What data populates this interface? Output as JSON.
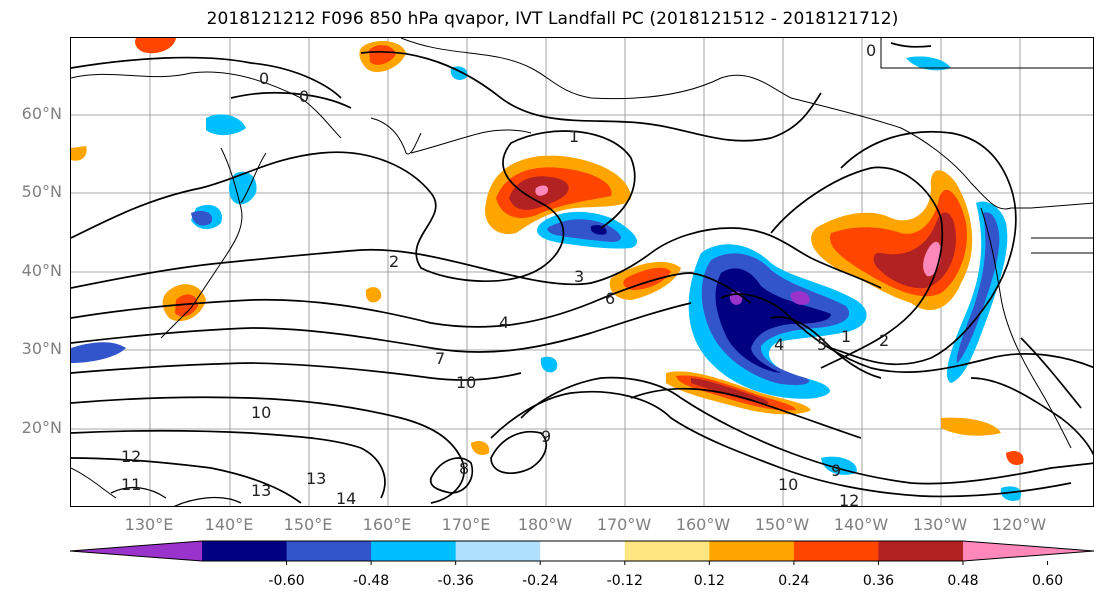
{
  "title": "2018121212 F096 850 hPa qvapor, IVT Landfall PC (2018121512 - 2018121712)",
  "lat_labels": [
    "60°N",
    "50°N",
    "40°N",
    "30°N",
    "20°N"
  ],
  "lon_labels": [
    "130°E",
    "140°E",
    "150°E",
    "160°E",
    "170°E",
    "180°W",
    "170°W",
    "160°W",
    "150°W",
    "140°W",
    "130°W",
    "120°W"
  ],
  "colorbar": {
    "colors": [
      "#9933cc",
      "#000080",
      "#3355cc",
      "#00bfff",
      "#b0e2ff",
      "#ffffff",
      "#ffe680",
      "#ffa500",
      "#ff4500",
      "#b22222",
      "#ff88bb"
    ],
    "tick_labels": [
      "-0.60",
      "-0.48",
      "-0.36",
      "-0.24",
      "-0.12",
      "0.12",
      "0.24",
      "0.36",
      "0.48",
      "0.60"
    ]
  },
  "contour_labels": [
    "0",
    "0",
    "0",
    "1",
    "1",
    "2",
    "2",
    "3",
    "4",
    "4",
    "5",
    "6",
    "7",
    "8",
    "9",
    "9",
    "10",
    "10",
    "10",
    "11",
    "12",
    "12",
    "13",
    "13",
    "14"
  ]
}
